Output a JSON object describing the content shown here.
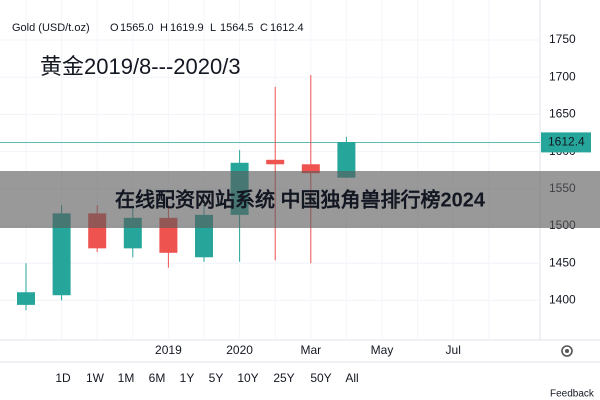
{
  "chart_data": {
    "type": "candlestick",
    "header": {
      "symbol": "Gold (USD/t.oz)",
      "fields": [
        {
          "key": "O",
          "value": "1565.0"
        },
        {
          "key": "H",
          "value": "1619.9"
        },
        {
          "key": "L",
          "value": "1564.5"
        },
        {
          "key": "C",
          "value": "1612.4"
        }
      ]
    },
    "annotation": "黄金2019/8---2020/3",
    "watermark": "在线配资网站系统 中国独角兽排行榜2024",
    "categories": [
      null,
      null,
      null,
      null,
      "2019",
      null,
      "2020",
      null,
      "Mar",
      null,
      "May",
      null,
      "Jul",
      null
    ],
    "open": [
      1394,
      1407,
      1517,
      1470,
      1511,
      1458,
      1515,
      1589,
      1583,
      1565.0,
      null,
      null,
      null,
      null
    ],
    "high": [
      1450,
      1528,
      1528,
      1528,
      1528,
      1528,
      1602,
      1687,
      1703,
      1619.9,
      null,
      null,
      null,
      null
    ],
    "low": [
      1387,
      1400,
      1465,
      1458,
      1444,
      1452,
      1452,
      1454,
      1450,
      1564.5,
      null,
      null,
      null,
      null
    ],
    "close": [
      1411,
      1517,
      1470,
      1511,
      1464,
      1515,
      1585,
      1583,
      1571,
      1612.4,
      null,
      null,
      null,
      null
    ],
    "up_color": "#26a69a",
    "down_color": "#ef5350",
    "last_price": 1612.4,
    "ylim": [
      1346.8,
      1803.8
    ],
    "yticks": [
      1400,
      1450,
      1500,
      1550,
      1600,
      1650,
      1700,
      1750
    ],
    "grid": true,
    "range_buttons": [
      "1D",
      "1W",
      "1M",
      "6M",
      "1Y",
      "5Y",
      "10Y",
      "25Y",
      "50Y",
      "All"
    ],
    "feedback": "Feedback"
  }
}
